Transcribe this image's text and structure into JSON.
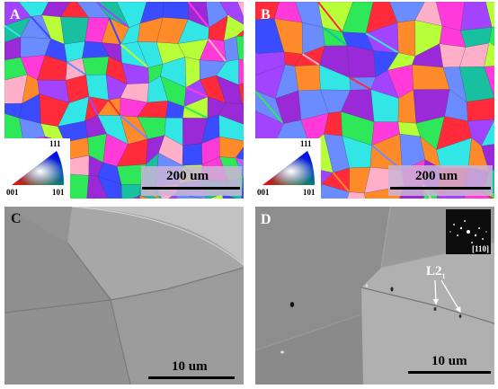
{
  "panels": {
    "a": {
      "label": "A",
      "scale": "200 um",
      "key": {
        "top": "111",
        "left": "001",
        "right": "101"
      }
    },
    "b": {
      "label": "B",
      "scale": "200 um",
      "key": {
        "top": "111",
        "left": "001",
        "right": "101"
      }
    },
    "c": {
      "label": "C",
      "scale": "10 um"
    },
    "d": {
      "label": "D",
      "scale": "10 um",
      "inset_label": "[110]",
      "annotation": "L2",
      "annotation_sub": "1"
    }
  },
  "colors": {
    "grain_palette": [
      "#ff2a3a",
      "#3a4cff",
      "#2ee85a",
      "#ff3ad8",
      "#a244ff",
      "#33e6e6",
      "#b8ff3a",
      "#ff8a2a",
      "#6a8cff",
      "#ffb0c8",
      "#18c0a0",
      "#9a2ad8"
    ],
    "sem_gray": "#959595"
  }
}
